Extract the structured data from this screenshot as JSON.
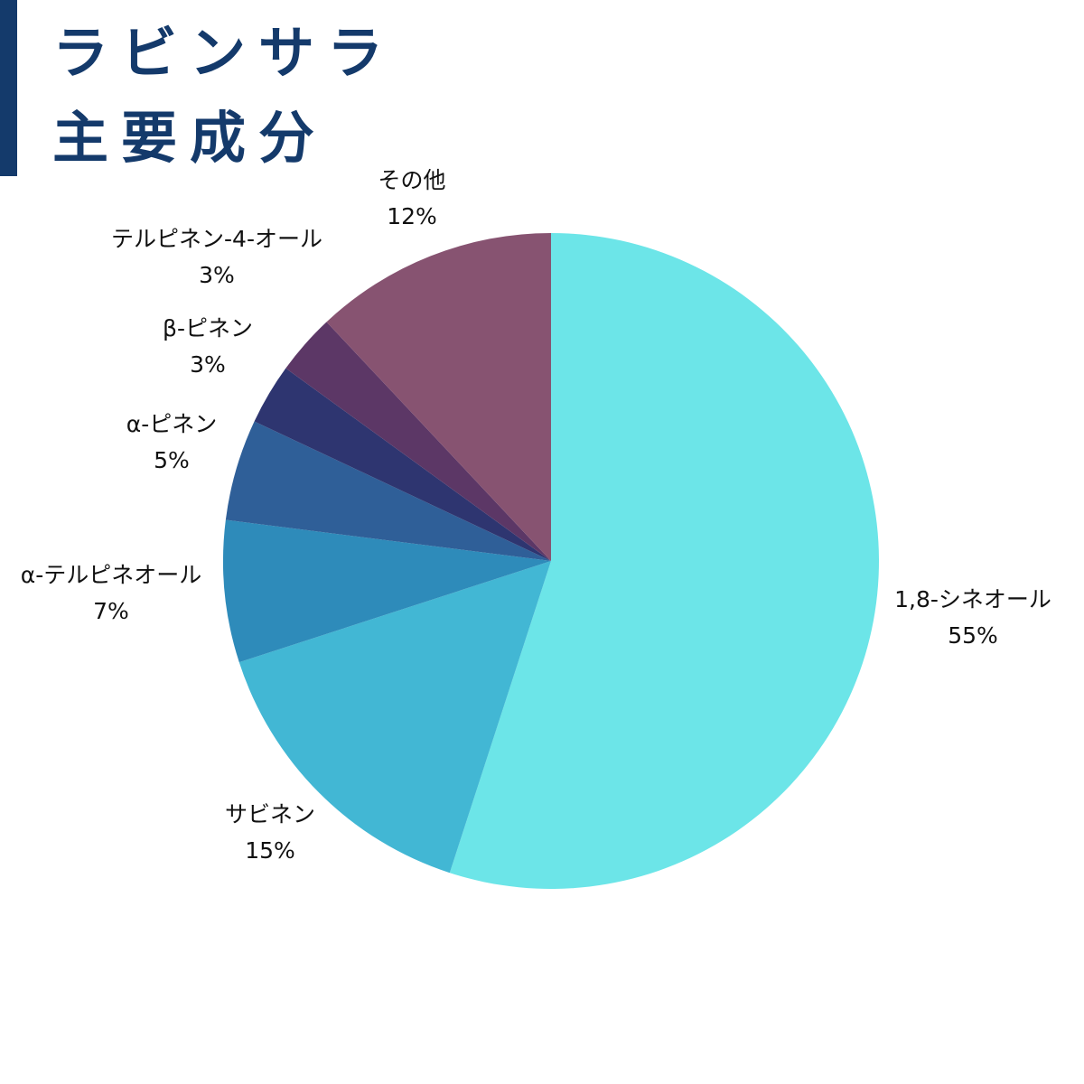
{
  "title_lines": [
    "ラビンサラ",
    "主要成分"
  ],
  "colors": {
    "accent": "#143a6b"
  },
  "chart_data": {
    "type": "pie",
    "title": "ラビンサラ 主要成分",
    "start": "12 o'clock",
    "direction": "clockwise",
    "categories": [
      "1,8-シネオール",
      "サビネン",
      "α-テルピネオール",
      "α-ピネン",
      "β-ピネン",
      "テルピネン-4-オール",
      "その他"
    ],
    "values": [
      55,
      15,
      7,
      5,
      3,
      3,
      12
    ],
    "value_labels": [
      "55%",
      "15%",
      "7%",
      "5%",
      "3%",
      "3%",
      "12%"
    ],
    "colors": [
      "#6ce5e8",
      "#42b7d4",
      "#2e8bba",
      "#2f5f98",
      "#2e3570",
      "#5c3766",
      "#875371"
    ]
  }
}
